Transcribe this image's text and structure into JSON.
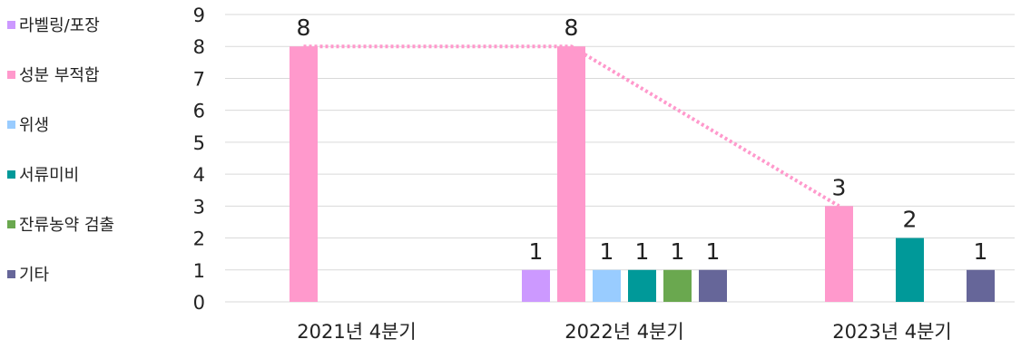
{
  "chart_data": {
    "type": "bar",
    "categories": [
      "2021년 4분기",
      "2022년 4분기",
      "2023년 4분기"
    ],
    "series": [
      {
        "name": "라벨링/포장",
        "color": "#cc99ff",
        "values": [
          null,
          1,
          null
        ]
      },
      {
        "name": "성분 부적합",
        "color": "#ff99cc",
        "values": [
          8,
          8,
          3
        ]
      },
      {
        "name": "위생",
        "color": "#99ccff",
        "values": [
          null,
          1,
          null
        ]
      },
      {
        "name": "서류미비",
        "color": "#009999",
        "values": [
          null,
          1,
          2
        ]
      },
      {
        "name": "잔류농약 검출",
        "color": "#6aa84f",
        "values": [
          null,
          1,
          null
        ]
      },
      {
        "name": "기타",
        "color": "#666699",
        "values": [
          null,
          1,
          1
        ]
      }
    ],
    "trendline": {
      "series": "성분 부적합",
      "style": "dotted",
      "color": "#ff99cc"
    },
    "ylim": [
      0,
      9
    ],
    "yticks": [
      0,
      1,
      2,
      3,
      4,
      5,
      6,
      7,
      8,
      9
    ],
    "grid": true,
    "legend_position": "left",
    "data_labels": true
  }
}
